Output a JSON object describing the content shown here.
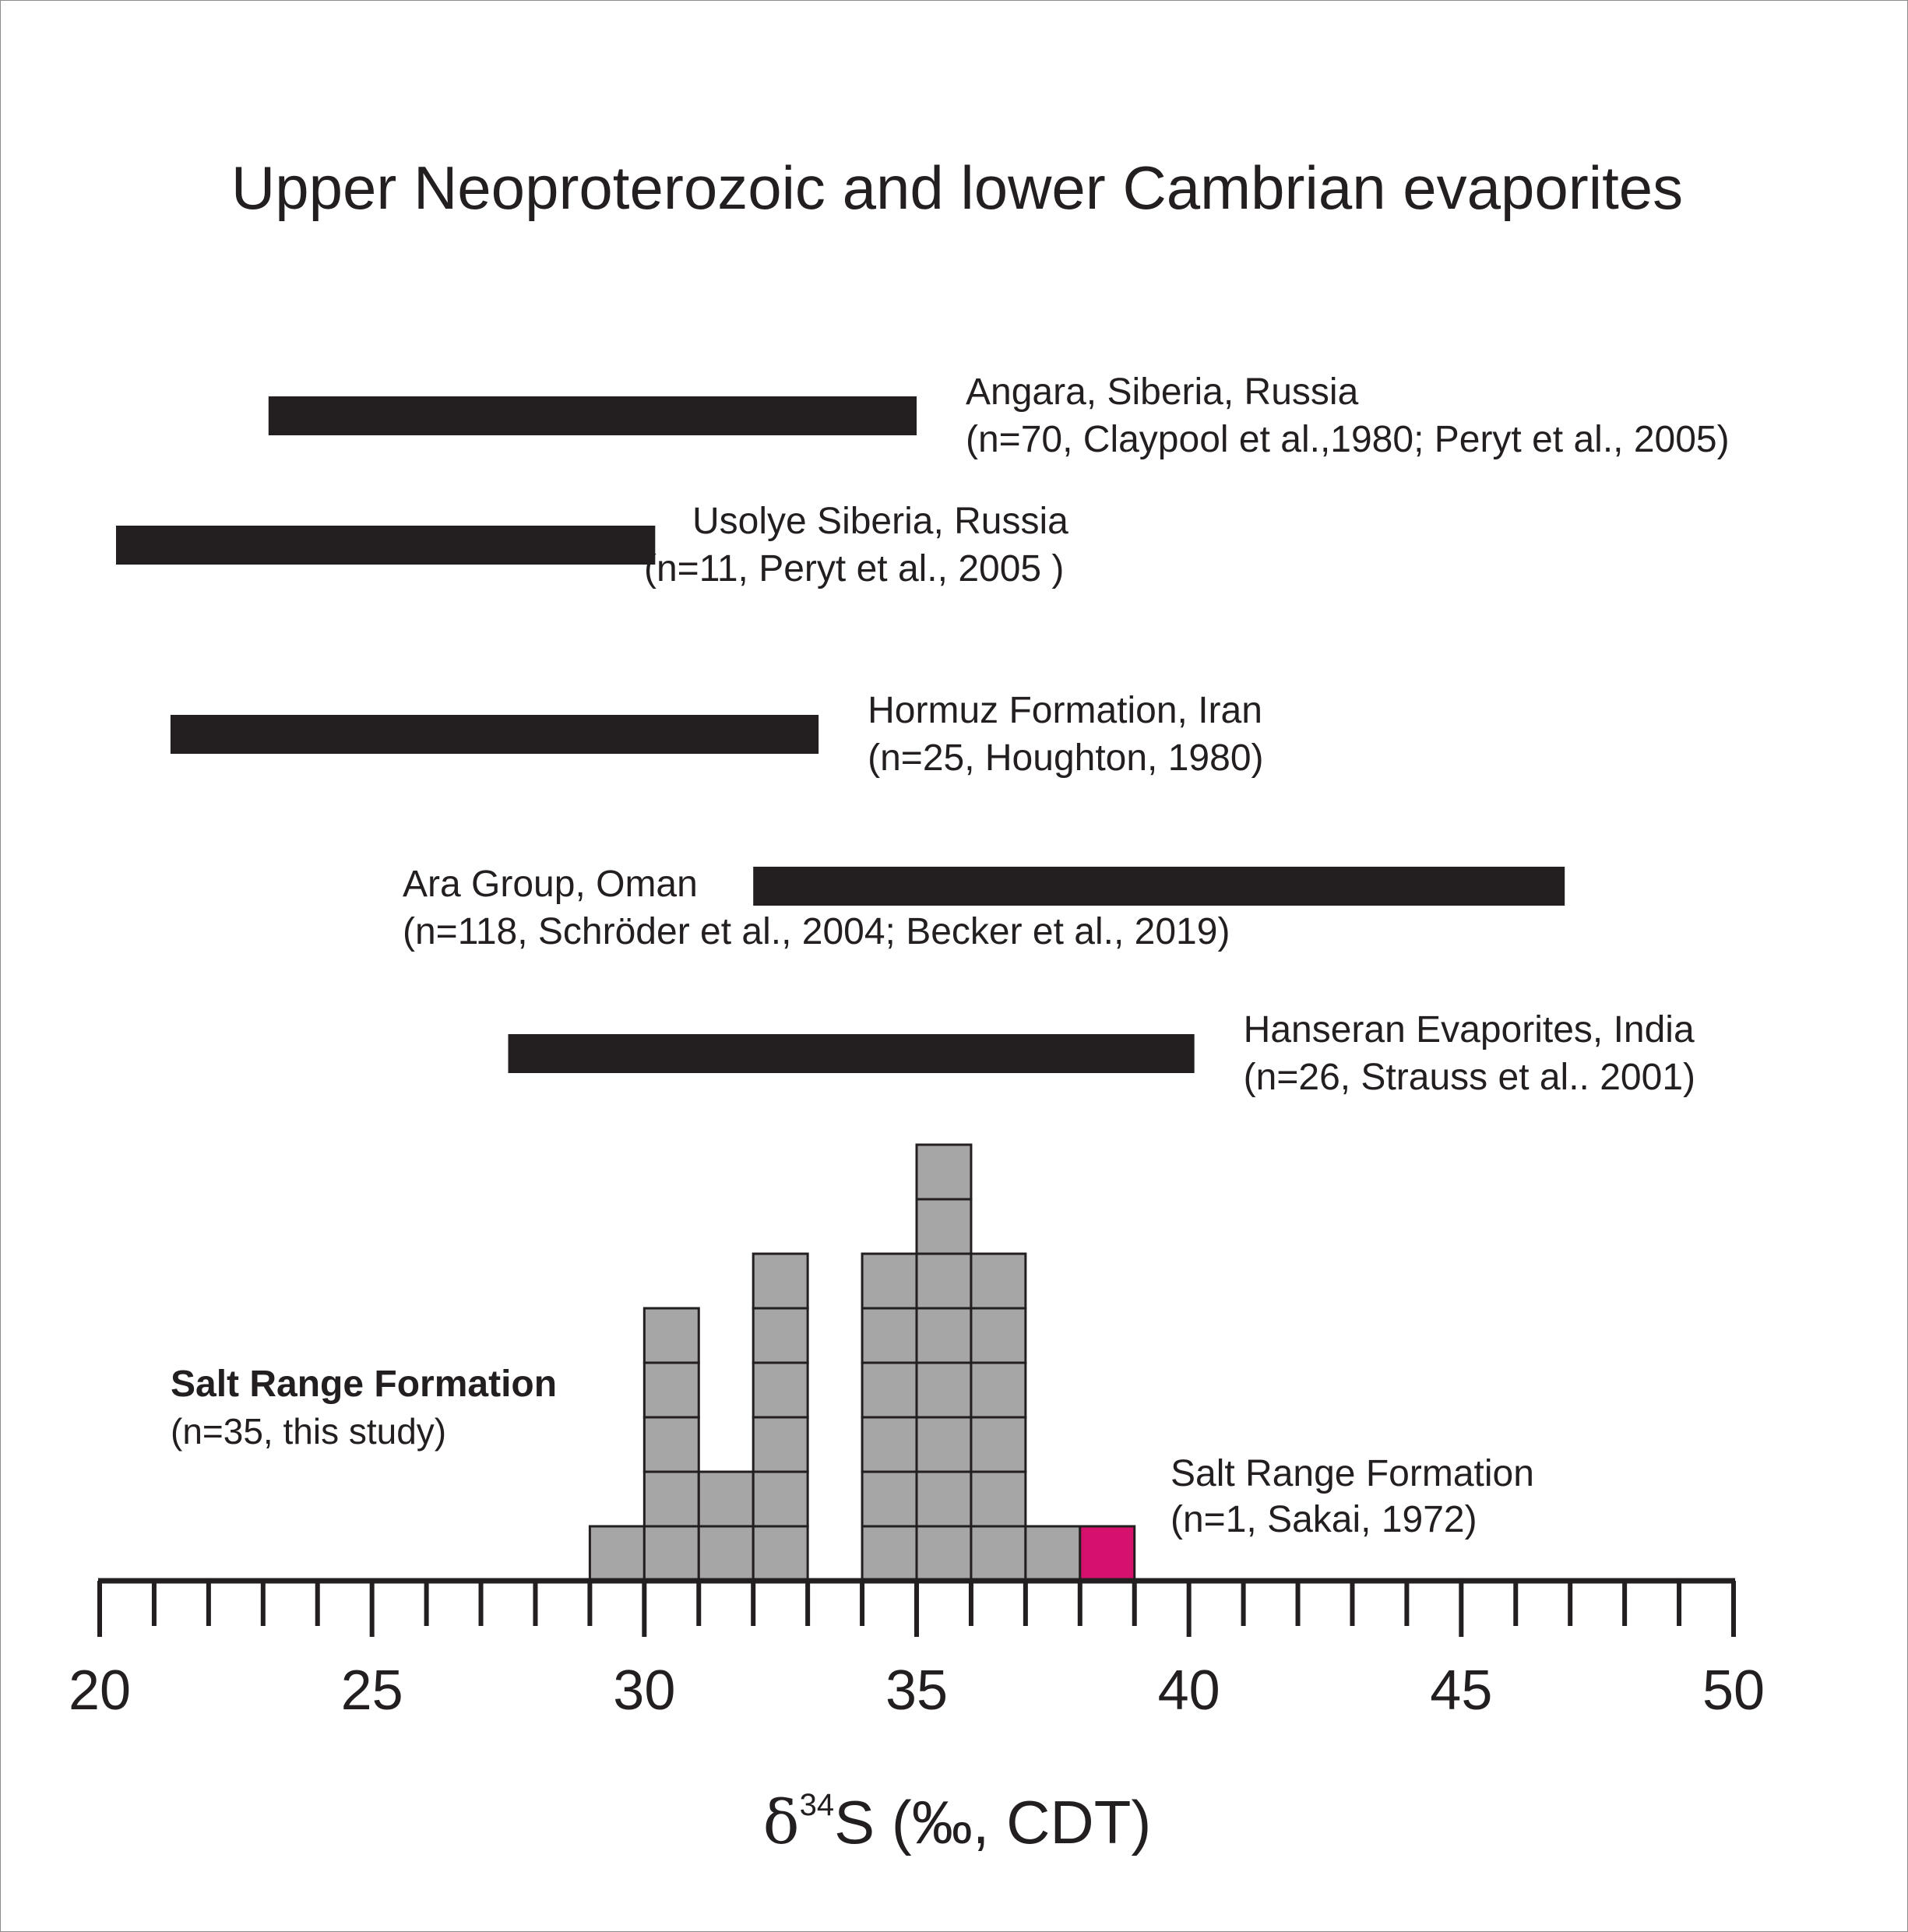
{
  "chart_data": {
    "type": "histogram-with-ranges",
    "title": "Upper Neoproterozoic and lower Cambrian evaporites",
    "xlabel": {
      "prefix": "δ",
      "sup": "34",
      "suffix": "S (‰, CDT)"
    },
    "xlim": [
      20,
      50
    ],
    "major_ticks": [
      20,
      25,
      30,
      35,
      40,
      45,
      50
    ],
    "minor_tick_step": 1,
    "grid": false,
    "ranges": [
      {
        "line1": "Angara, Siberia, Russia",
        "line2": "(n=70, Claypool et al.,1980; Peryt et al., 2005)",
        "min": 23.1,
        "max": 35.0,
        "label_side": "right"
      },
      {
        "line1": "Usolye Siberia, Russia",
        "line2": "(n=11, Peryt et al., 2005 )",
        "min": 20.3,
        "max": 30.2,
        "label_side": "right"
      },
      {
        "line1": "Hormuz Formation, Iran",
        "line2": "(n=25, Houghton, 1980)",
        "min": 21.3,
        "max": 33.2,
        "label_side": "right"
      },
      {
        "line1": "Ara Group, Oman",
        "line2": "(n=118, Schröder et al., 2004; Becker et al., 2019)",
        "min": 32.0,
        "max": 46.9,
        "label_side": "left"
      },
      {
        "line1": "Hanseran Evaporites, India",
        "line2": "(n=26, Strauss et al.. 2001)",
        "min": 27.5,
        "max": 40.1,
        "label_side": "right"
      }
    ],
    "histogram": {
      "bin_width": 1,
      "series": [
        {
          "line1": "Salt Range Formation",
          "line2": "(n=35, this study)",
          "color": "#a6a6a6",
          "bins": [
            {
              "start": 29,
              "count": 1
            },
            {
              "start": 30,
              "count": 5
            },
            {
              "start": 31,
              "count": 2
            },
            {
              "start": 32,
              "count": 6
            },
            {
              "start": 34,
              "count": 6
            },
            {
              "start": 35,
              "count": 8
            },
            {
              "start": 36,
              "count": 6
            },
            {
              "start": 37,
              "count": 1
            }
          ]
        },
        {
          "line1": "Salt Range Formation",
          "line2": "(n=1, Sakai, 1972)",
          "color": "#d6116d",
          "bins": [
            {
              "start": 38,
              "count": 1
            }
          ]
        }
      ]
    }
  }
}
